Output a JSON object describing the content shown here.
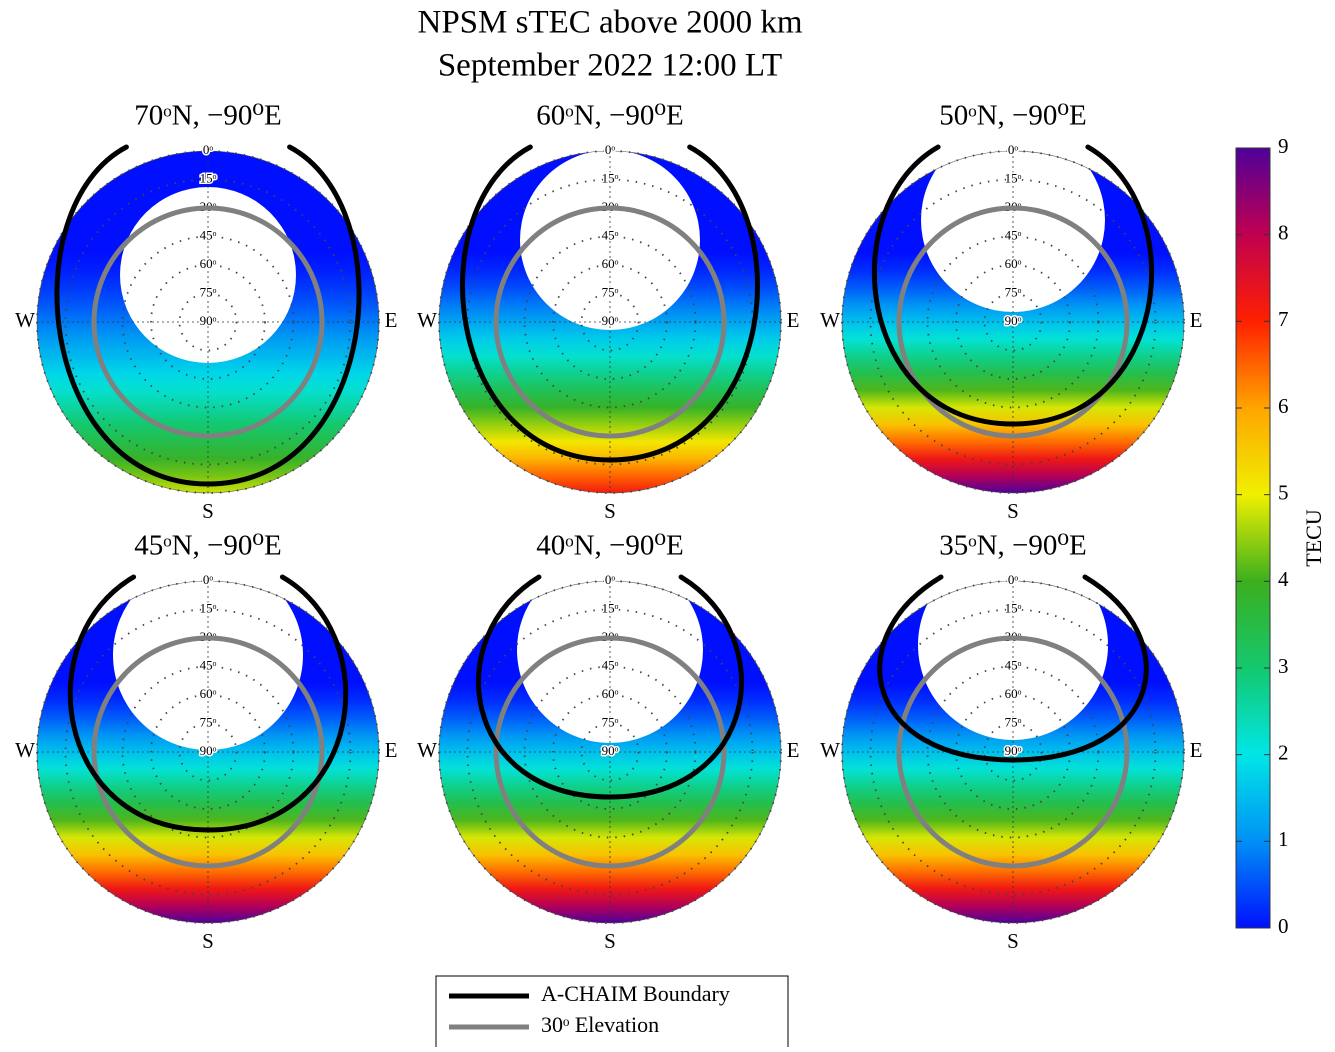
{
  "chart_data": {
    "type": "polar-heatmap",
    "title": "NPSM sTEC above 2000 km",
    "subtitle": "September 2022 12:00 LT",
    "panels": [
      {
        "title": "70ᵒN, −90⁰E",
        "edge_tecu": 4.8
      },
      {
        "title": "60ᵒN, −90⁰E",
        "edge_tecu": 7.2
      },
      {
        "title": "50ᵒN, −90⁰E",
        "edge_tecu": 9
      },
      {
        "title": "45ᵒN, −90⁰E",
        "edge_tecu": 9
      },
      {
        "title": "40ᵒN, −90⁰E",
        "edge_tecu": 9
      },
      {
        "title": "35ᵒN, −90⁰E",
        "edge_tecu": 9
      }
    ],
    "rticks": [
      {
        "value": 0,
        "label": "0ᵒ"
      },
      {
        "value": 15,
        "label": "15ᵒ"
      },
      {
        "value": 30,
        "label": "30ᵒ"
      },
      {
        "value": 45,
        "label": "45ᵒ"
      },
      {
        "value": 60,
        "label": "60ᵒ"
      },
      {
        "value": 75,
        "label": "75ᵒ"
      },
      {
        "value": 90,
        "label": "90ᵒ"
      }
    ],
    "directions": [
      "W",
      "E",
      "S"
    ],
    "colorbar": {
      "label": "TECU",
      "ylim": [
        0,
        9
      ],
      "ticks": [
        0,
        1,
        2,
        3,
        4,
        5,
        6,
        7,
        8,
        9
      ],
      "colormap": [
        "#0010ff",
        "#0090f5",
        "#00e6e6",
        "#14c86e",
        "#3caf1e",
        "#f0f000",
        "#ffa500",
        "#ff2000",
        "#c00050",
        "#50009a"
      ]
    },
    "series": [
      {
        "name": "A-CHAIM Boundary",
        "color": "#000000"
      },
      {
        "name": "30ᵒ Elevation",
        "color": "#808080"
      }
    ]
  }
}
